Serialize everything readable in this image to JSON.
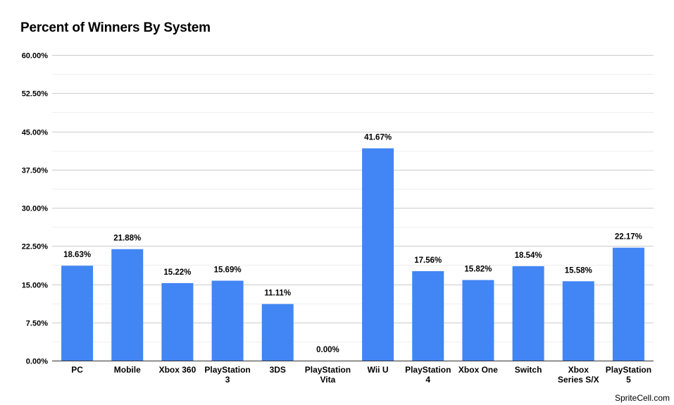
{
  "chart_data": {
    "type": "bar",
    "title": "Percent of Winners By System",
    "xlabel": "",
    "ylabel": "",
    "categories": [
      [
        "PC"
      ],
      [
        "Mobile"
      ],
      [
        "Xbox 360"
      ],
      [
        "PlayStation",
        "3"
      ],
      [
        "3DS"
      ],
      [
        "PlayStation",
        "Vita"
      ],
      [
        "Wii U"
      ],
      [
        "PlayStation",
        "4"
      ],
      [
        "Xbox One"
      ],
      [
        "Switch"
      ],
      [
        "Xbox",
        "Series S/X"
      ],
      [
        "PlayStation",
        "5"
      ]
    ],
    "values": [
      18.63,
      21.88,
      15.22,
      15.69,
      11.11,
      0.0,
      41.67,
      17.56,
      15.82,
      18.54,
      15.58,
      22.17
    ],
    "data_labels": [
      "18.63%",
      "21.88%",
      "15.22%",
      "15.69%",
      "11.11%",
      "0.00%",
      "41.67%",
      "17.56%",
      "15.82%",
      "18.54%",
      "15.58%",
      "22.17%"
    ],
    "yticks": [
      0,
      7.5,
      15,
      22.5,
      30,
      37.5,
      45,
      52.5,
      60
    ],
    "ytick_labels": [
      "0.00%",
      "7.50%",
      "15.00%",
      "22.50%",
      "30.00%",
      "37.50%",
      "45.00%",
      "52.50%",
      "60.00%"
    ],
    "ylim": [
      0,
      60
    ],
    "grid": true,
    "legend": "none",
    "bar_color": "#4285f4",
    "gridline_color": "#cccccc"
  },
  "watermark": "SpriteCell.com"
}
